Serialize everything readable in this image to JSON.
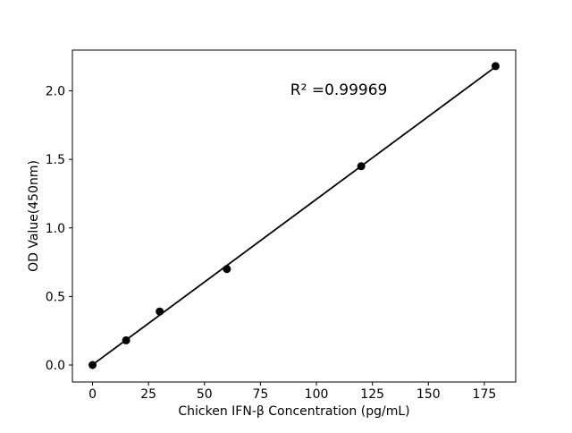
{
  "figure": {
    "background": "#ffffff"
  },
  "chart_data": {
    "type": "scatter",
    "title": "",
    "xlabel": "Chicken IFN-β Concentration (pg/mL)",
    "ylabel": "OD Value(450nm)",
    "annotation": {
      "text": "R² =0.99969",
      "x": 110,
      "y": 2.01
    },
    "x": [
      0,
      15,
      30,
      60,
      120,
      180
    ],
    "y": [
      0.0,
      0.18,
      0.39,
      0.7,
      1.45,
      2.18
    ],
    "trendline": {
      "x": [
        0,
        180
      ],
      "y": [
        0.002,
        2.175
      ]
    },
    "xticks": {
      "values": [
        0,
        25,
        50,
        75,
        100,
        125,
        150,
        175
      ],
      "labels": [
        "0",
        "25",
        "50",
        "75",
        "100",
        "125",
        "150",
        "175"
      ]
    },
    "yticks": {
      "values": [
        0,
        0.5,
        1.0,
        1.5,
        2.0
      ],
      "labels": [
        "0.0",
        "0.5",
        "1.0",
        "1.5",
        "2.0"
      ]
    },
    "xlim": [
      -9,
      189
    ],
    "ylim": [
      -0.124,
      2.297
    ],
    "grid": false,
    "legend_position": "none",
    "marker_color": "#000000",
    "line_color": "#000000",
    "axis_color": "#000000"
  }
}
